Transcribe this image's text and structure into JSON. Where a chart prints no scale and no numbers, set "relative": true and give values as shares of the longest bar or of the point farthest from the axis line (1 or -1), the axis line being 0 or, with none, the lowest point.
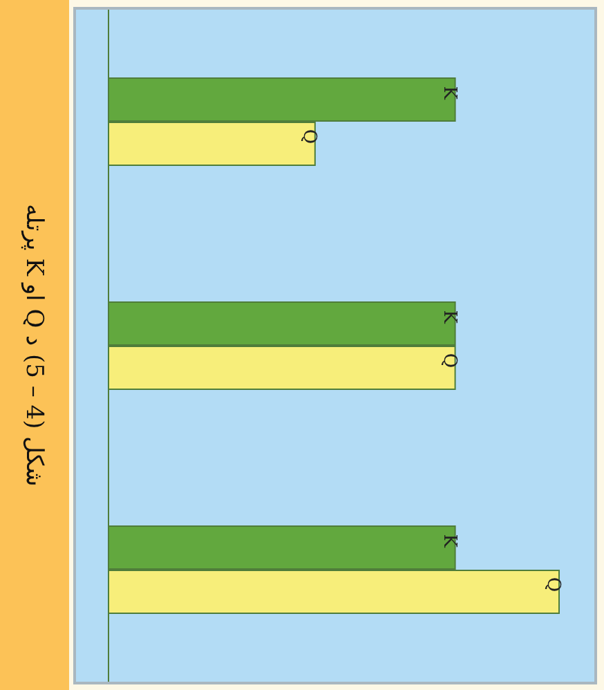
{
  "chart_data": {
    "type": "bar",
    "orientation": "horizontal",
    "relative": true,
    "title": "شکل (4 – 5) د Q او K پرتله",
    "categories": [
      null,
      null,
      null
    ],
    "series": [
      {
        "name": "K",
        "color": "#62a83e",
        "values": [
          0.77,
          0.77,
          0.77
        ]
      },
      {
        "name": "Q",
        "color": "#f7ee7a",
        "values": [
          0.46,
          0.77,
          1
        ]
      }
    ],
    "legend": false
  }
}
